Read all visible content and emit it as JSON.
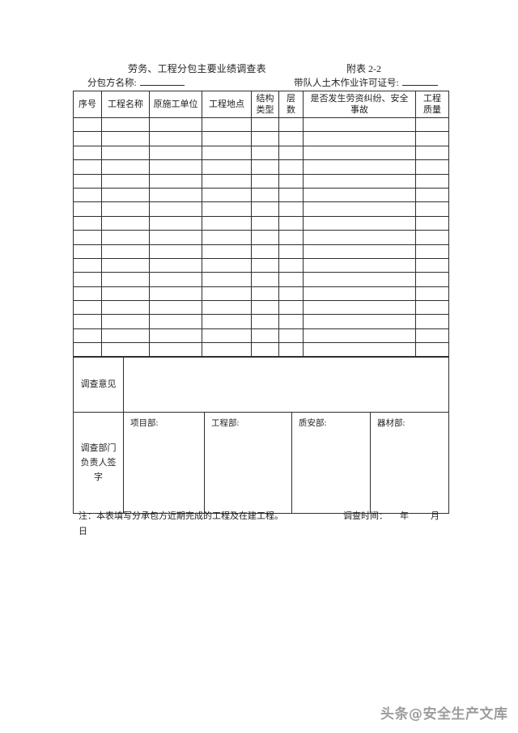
{
  "document": {
    "title": "劳务、工程分包主要业绩调查表",
    "annex": "附表 2-2",
    "fields": {
      "subcontractor_label": "分包方名称:",
      "subcontractor_value": "",
      "permit_label": "带队人土木作业许可证号:",
      "permit_value": ""
    },
    "table": {
      "headers": [
        "序号",
        "工程名称",
        "原施工单位",
        "工程地点",
        "结构\n类型",
        "层\n数",
        "是否发生劳资纠纷、安全\n事故",
        "工程\n质量"
      ],
      "empty_row_count": 17
    },
    "opinion": {
      "label": "调查意见",
      "content": ""
    },
    "signature": {
      "label": "调查部门\n负责人签\n字",
      "departments": [
        "项目部:",
        "工程部:",
        "质安部:",
        "器材部:"
      ]
    },
    "note": {
      "text": "注：本表填写分承包方近期完成的工程及在建工程。",
      "time_label": "调查时间：",
      "year": "年",
      "month": "月",
      "day": "日"
    },
    "watermark": "头条@安全生产文库"
  }
}
